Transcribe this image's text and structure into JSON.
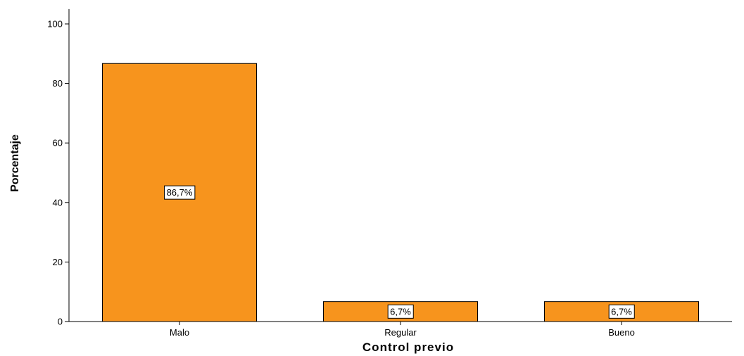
{
  "chart_data": {
    "type": "bar",
    "categories": [
      "Malo",
      "Regular",
      "Bueno"
    ],
    "values": [
      86.7,
      6.7,
      6.7
    ],
    "data_labels": [
      "86,7%",
      "6,7%",
      "6,7%"
    ],
    "xlabel": "Control previo",
    "ylabel": "Porcentaje",
    "ylim": [
      0,
      105
    ],
    "yticks": [
      0,
      20,
      40,
      60,
      80,
      100
    ],
    "grid": false,
    "bar_color": "#f7941d",
    "bar_edge_color": "#000000"
  }
}
